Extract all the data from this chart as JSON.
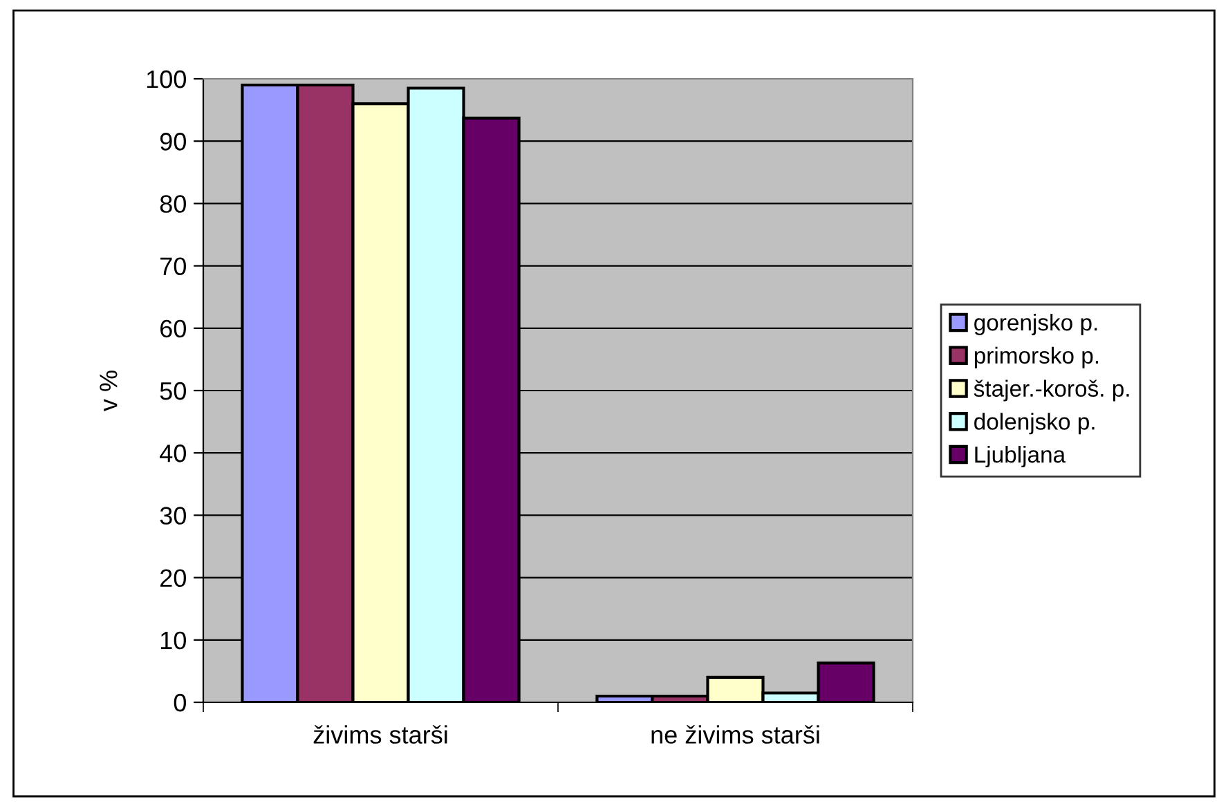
{
  "chart_data": {
    "type": "bar",
    "ylabel": "v %",
    "categories": [
      "živims starši",
      "ne živims starši"
    ],
    "series": [
      {
        "name": "gorenjsko p.",
        "color": "#9999ff",
        "values": [
          99,
          1
        ]
      },
      {
        "name": "primorsko p.",
        "color": "#993366",
        "values": [
          99,
          1
        ]
      },
      {
        "name": "štajer.-koroš. p.",
        "color": "#ffffcc",
        "values": [
          96,
          4
        ]
      },
      {
        "name": "dolenjsko p.",
        "color": "#ccffff",
        "values": [
          98.5,
          1.5
        ]
      },
      {
        "name": "Ljubljana",
        "color": "#660066",
        "values": [
          93.7,
          6.3
        ]
      }
    ],
    "ylim": [
      0,
      100
    ],
    "yticks": [
      0,
      10,
      20,
      30,
      40,
      50,
      60,
      70,
      80,
      90,
      100
    ],
    "grid": "y",
    "legend": "right"
  }
}
